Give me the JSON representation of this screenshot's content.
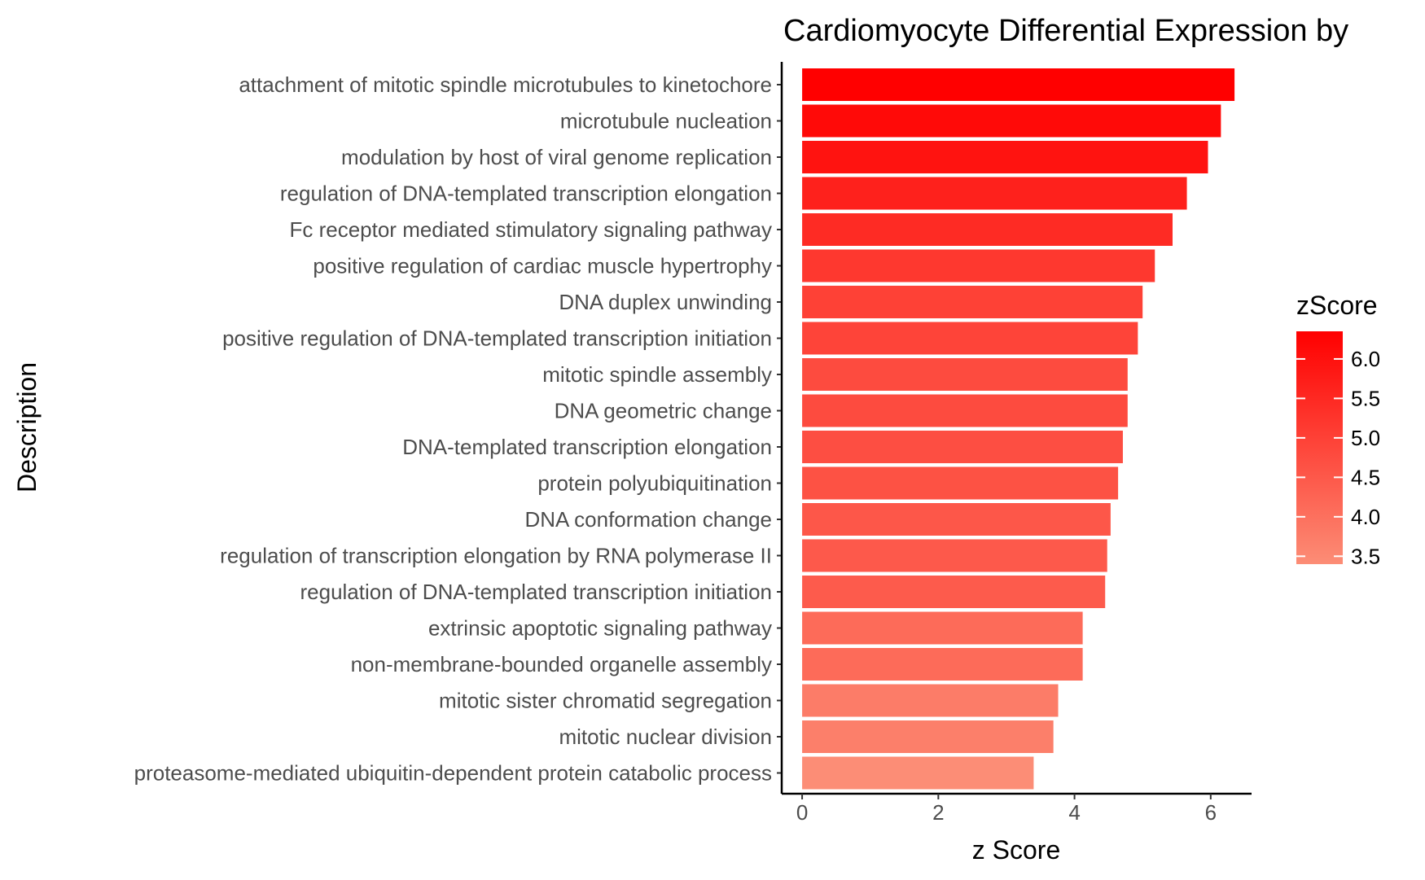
{
  "chart_data": {
    "type": "bar",
    "orientation": "horizontal",
    "title": "Cardiomyocyte Differential Expression by",
    "xlabel": "z Score",
    "ylabel": "Description",
    "xlim": [
      -0.3,
      6.6
    ],
    "x_ticks": [
      0,
      2,
      4,
      6
    ],
    "x_tick_labels": [
      "0",
      "2",
      "4",
      "6"
    ],
    "grid": false,
    "categories": [
      "attachment of mitotic spindle microtubules to kinetochore",
      "microtubule nucleation",
      "modulation by host of viral genome replication",
      "regulation of DNA-templated transcription elongation",
      "Fc receptor mediated stimulatory signaling pathway",
      "positive regulation of cardiac muscle hypertrophy",
      "DNA duplex unwinding",
      "positive regulation of DNA-templated transcription initiation",
      "mitotic spindle assembly",
      "DNA geometric change",
      "DNA-templated transcription elongation",
      "protein polyubiquitination",
      "DNA conformation change",
      "regulation of transcription elongation by RNA polymerase II",
      "regulation of DNA-templated transcription initiation",
      "extrinsic apoptotic signaling pathway",
      "non-membrane-bounded organelle assembly",
      "mitotic sister chromatid segregation",
      "mitotic nuclear division",
      "proteasome-mediated ubiquitin-dependent protein catabolic process"
    ],
    "values": [
      6.35,
      6.15,
      5.96,
      5.65,
      5.44,
      5.18,
      5.0,
      4.93,
      4.78,
      4.78,
      4.71,
      4.64,
      4.53,
      4.48,
      4.45,
      4.12,
      4.12,
      3.76,
      3.69,
      3.4
    ],
    "legend": {
      "title": "zScore",
      "position": "right",
      "min": 3.4,
      "max": 6.35,
      "ticks": [
        6.0,
        5.5,
        5.0,
        4.5,
        4.0,
        3.5
      ],
      "tick_labels": [
        "6.0",
        "5.5",
        "5.0",
        "4.5",
        "4.0",
        "3.5"
      ],
      "low_color": "#fc8d76",
      "high_color": "#ff0000"
    }
  }
}
